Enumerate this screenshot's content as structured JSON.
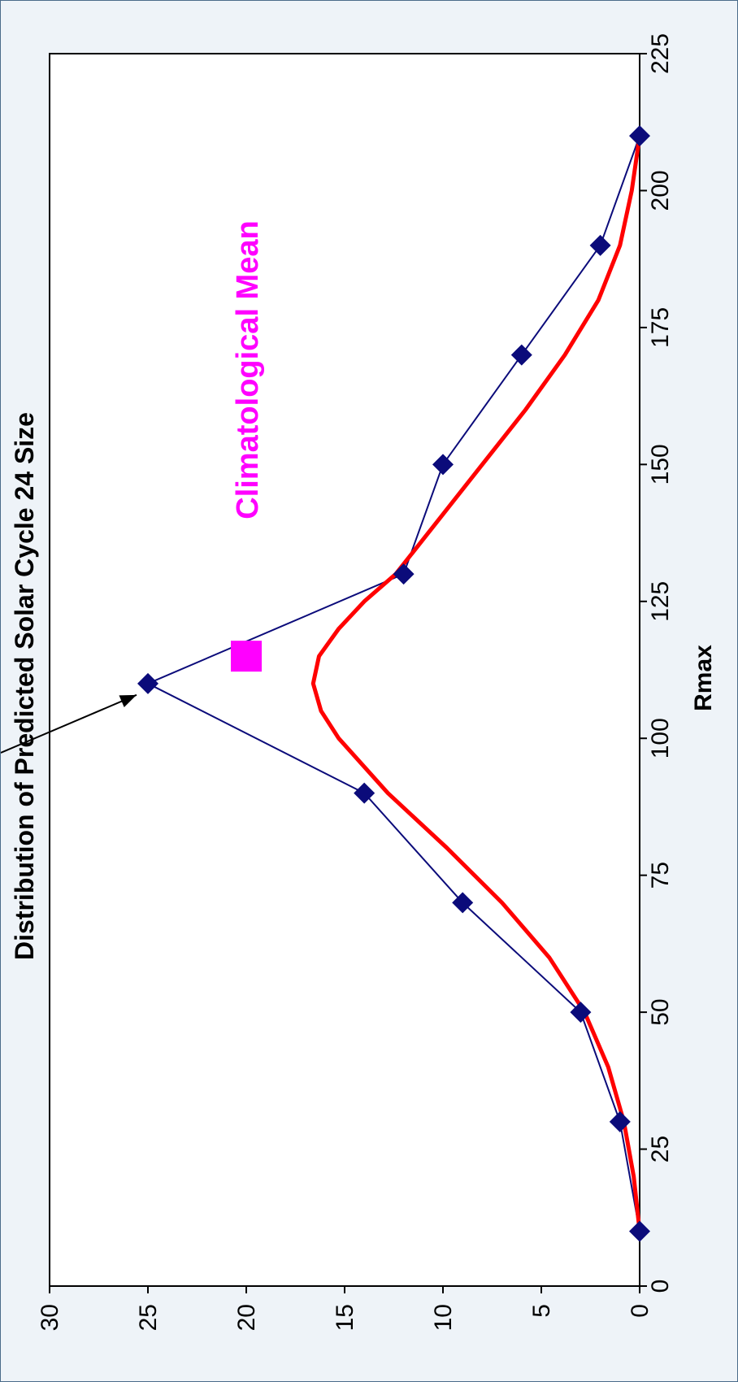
{
  "chart_data": {
    "type": "line",
    "title": "Distribution of Predicted Solar Cycle 24 Size",
    "xlabel": "Rmax",
    "ylabel": "",
    "xlim": [
      0,
      225
    ],
    "ylim": [
      0,
      30
    ],
    "x_ticks": [
      "0",
      "25",
      "50",
      "75",
      "100",
      "125",
      "150",
      "175",
      "200",
      "225"
    ],
    "y_ticks": [
      "0",
      "5",
      "10",
      "15",
      "20",
      "25",
      "30"
    ],
    "orientation": "rotated-90-clockwise",
    "series": [
      {
        "type": "line-markers",
        "marker": "diamond",
        "color": "#0b0b7a",
        "points": [
          [
            10,
            0
          ],
          [
            30,
            1
          ],
          [
            50,
            3
          ],
          [
            70,
            9
          ],
          [
            90,
            14
          ],
          [
            110,
            25
          ],
          [
            130,
            12
          ],
          [
            150,
            10
          ],
          [
            170,
            6
          ],
          [
            190,
            2
          ],
          [
            210,
            0
          ]
        ]
      },
      {
        "type": "line",
        "color": "#ff0000",
        "points": [
          [
            10,
            0
          ],
          [
            20,
            0.3
          ],
          [
            30,
            0.8
          ],
          [
            40,
            1.6
          ],
          [
            50,
            2.8
          ],
          [
            60,
            4.6
          ],
          [
            70,
            7
          ],
          [
            80,
            9.8
          ],
          [
            90,
            12.8
          ],
          [
            100,
            15.3
          ],
          [
            105,
            16.2
          ],
          [
            110,
            16.6
          ],
          [
            115,
            16.3
          ],
          [
            120,
            15.3
          ],
          [
            125,
            14
          ],
          [
            130,
            12.4
          ],
          [
            140,
            10.2
          ],
          [
            150,
            8
          ],
          [
            160,
            5.8
          ],
          [
            170,
            3.8
          ],
          [
            180,
            2.1
          ],
          [
            190,
            1
          ],
          [
            200,
            0.4
          ],
          [
            210,
            0
          ]
        ]
      },
      {
        "type": "point",
        "marker": "square",
        "color": "#ff00ff",
        "points": [
          [
            115,
            20
          ]
        ]
      }
    ],
    "annotations": [
      {
        "text": "Climatological Mean",
        "color": "#ff00ff",
        "x": 140,
        "y": 20
      },
      {
        "arrow_to": [
          110,
          25
        ]
      }
    ],
    "grid": false
  }
}
